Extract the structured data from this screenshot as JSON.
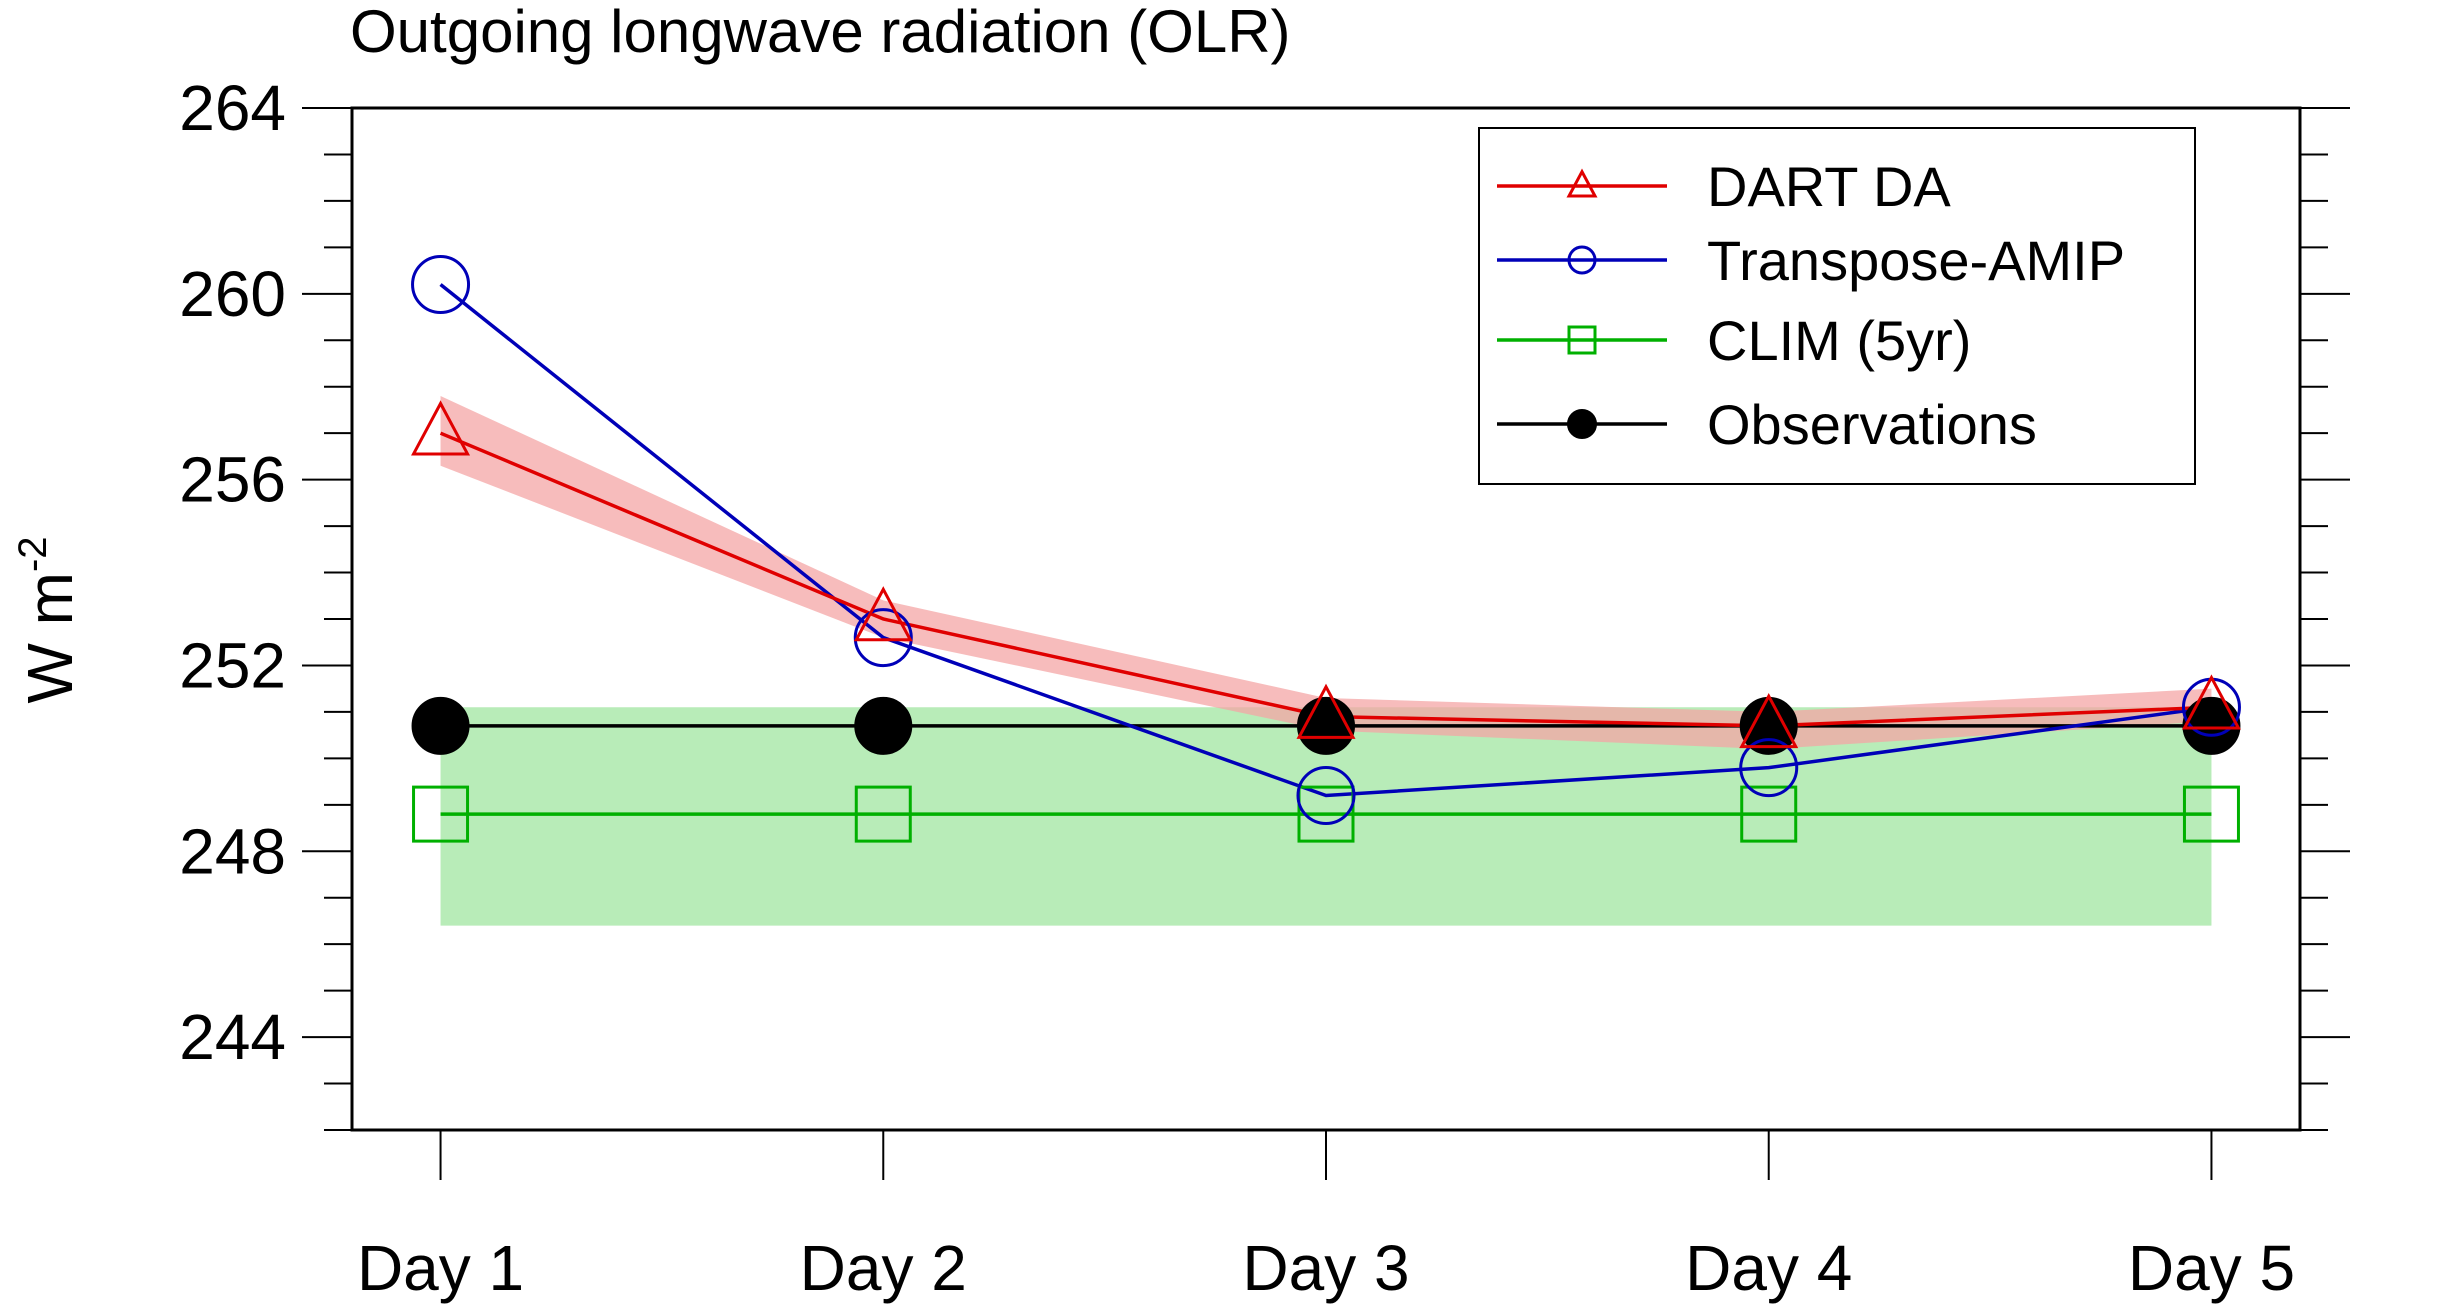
{
  "chart_data": {
    "type": "line",
    "title": "Outgoing longwave radiation (OLR)",
    "xlabel": "",
    "ylabel": "W m",
    "ylabel_superscript": "-2",
    "categories": [
      "Day 1",
      "Day 2",
      "Day 3",
      "Day 4",
      "Day 5"
    ],
    "x": [
      1,
      2,
      3,
      4,
      5
    ],
    "xlim": [
      0.8,
      5.2
    ],
    "ylim": [
      242,
      264
    ],
    "yticks": [
      244,
      248,
      252,
      256,
      260,
      264
    ],
    "yticks_minor_step": 1,
    "grid": false,
    "legend_position": "top-right",
    "series": [
      {
        "name": "DART DA",
        "color": "#e00000",
        "marker": "triangle",
        "values": [
          257.0,
          253.0,
          250.9,
          250.7,
          251.1
        ],
        "band_lower": [
          256.3,
          252.6,
          250.6,
          250.2,
          250.8
        ],
        "band_upper": [
          257.8,
          253.4,
          251.3,
          251.0,
          251.5
        ],
        "band_color": "#f4a6a6"
      },
      {
        "name": "Transpose-AMIP",
        "color": "#0000b8",
        "marker": "circle",
        "values": [
          260.2,
          252.6,
          249.2,
          249.8,
          251.1
        ]
      },
      {
        "name": "CLIM (5yr)",
        "color": "#00b000",
        "marker": "square",
        "values": [
          248.8,
          248.8,
          248.8,
          248.8,
          248.8
        ],
        "band_lower": [
          246.4,
          246.4,
          246.4,
          246.4,
          246.4
        ],
        "band_upper": [
          251.1,
          251.1,
          251.1,
          251.1,
          251.1
        ],
        "band_color": "#b8ecb8"
      },
      {
        "name": "Observations",
        "color": "#000000",
        "marker": "filled-circle",
        "values": [
          250.7,
          250.7,
          250.7,
          250.7,
          250.7
        ]
      }
    ]
  }
}
